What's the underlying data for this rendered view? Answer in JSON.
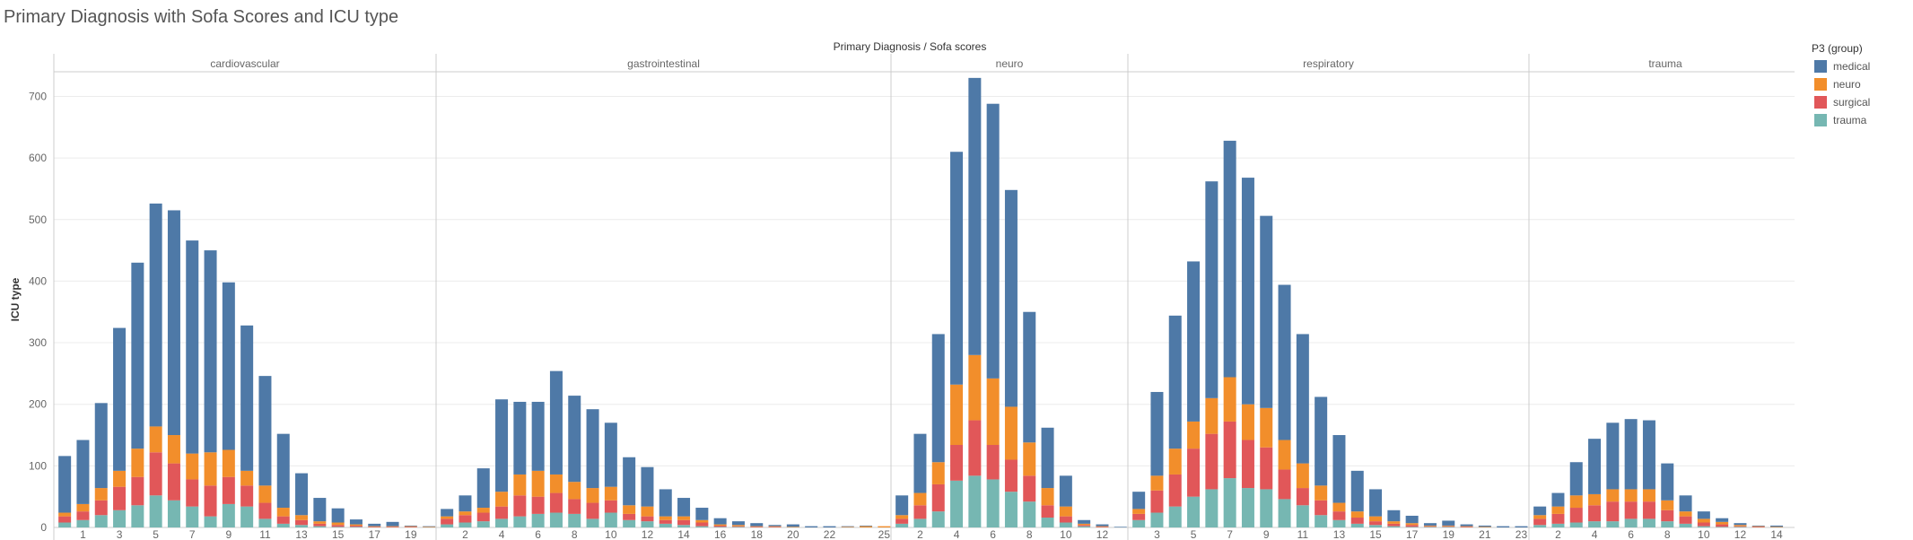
{
  "title": "Primary Diagnosis with Sofa Scores and ICU type",
  "chart_data": {
    "type": "bar",
    "stacked": true,
    "title": "Primary Diagnosis with Sofa Scores and ICU type",
    "column_header": "Primary Diagnosis  /  Sofa scores",
    "ylabel": "ICU type",
    "ylim": [
      0,
      740
    ],
    "yticks": [
      0,
      100,
      200,
      300,
      400,
      500,
      600,
      700
    ],
    "grid": true,
    "legend_title": "P3 (group)",
    "legend_position": "top-right",
    "series": [
      {
        "name": "medical",
        "color": "#4e79a7"
      },
      {
        "name": "neuro",
        "color": "#f28e2b"
      },
      {
        "name": "surgical",
        "color": "#e15759"
      },
      {
        "name": "trauma",
        "color": "#76b7b2"
      }
    ],
    "panels": [
      {
        "name": "cardiovascular",
        "x": [
          0,
          1,
          2,
          3,
          4,
          5,
          6,
          7,
          8,
          9,
          10,
          11,
          12,
          13,
          14,
          15,
          16,
          17,
          18,
          19,
          20
        ],
        "xtick_labels": [
          "1",
          "3",
          "5",
          "7",
          "9",
          "11",
          "13",
          "15",
          "17",
          "19"
        ],
        "stacks": [
          {
            "trauma": 8,
            "surgical": 10,
            "neuro": 6,
            "medical": 92
          },
          {
            "trauma": 12,
            "surgical": 14,
            "neuro": 12,
            "medical": 104
          },
          {
            "trauma": 20,
            "surgical": 24,
            "neuro": 20,
            "medical": 138
          },
          {
            "trauma": 28,
            "surgical": 38,
            "neuro": 26,
            "medical": 232
          },
          {
            "trauma": 36,
            "surgical": 46,
            "neuro": 46,
            "medical": 302
          },
          {
            "trauma": 52,
            "surgical": 70,
            "neuro": 42,
            "medical": 362
          },
          {
            "trauma": 44,
            "surgical": 60,
            "neuro": 46,
            "medical": 365
          },
          {
            "trauma": 34,
            "surgical": 44,
            "neuro": 42,
            "medical": 346
          },
          {
            "trauma": 18,
            "surgical": 50,
            "neuro": 54,
            "medical": 328
          },
          {
            "trauma": 38,
            "surgical": 44,
            "neuro": 44,
            "medical": 272
          },
          {
            "trauma": 34,
            "surgical": 34,
            "neuro": 24,
            "medical": 236
          },
          {
            "trauma": 14,
            "surgical": 26,
            "neuro": 28,
            "medical": 178
          },
          {
            "trauma": 6,
            "surgical": 12,
            "neuro": 14,
            "medical": 120
          },
          {
            "trauma": 4,
            "surgical": 8,
            "neuro": 8,
            "medical": 68
          },
          {
            "trauma": 2,
            "surgical": 4,
            "neuro": 4,
            "medical": 38
          },
          {
            "trauma": 1,
            "surgical": 3,
            "neuro": 4,
            "medical": 23
          },
          {
            "trauma": 1,
            "surgical": 2,
            "neuro": 2,
            "medical": 8
          },
          {
            "trauma": 0,
            "surgical": 1,
            "neuro": 1,
            "medical": 4
          },
          {
            "trauma": 0,
            "surgical": 1,
            "neuro": 1,
            "medical": 7
          },
          {
            "trauma": 0,
            "surgical": 1,
            "neuro": 1,
            "medical": 1
          },
          {
            "trauma": 0,
            "surgical": 0,
            "neuro": 1,
            "medical": 1
          }
        ]
      },
      {
        "name": "gastrointestinal",
        "x": [
          1,
          2,
          3,
          4,
          5,
          6,
          7,
          8,
          9,
          10,
          11,
          12,
          13,
          14,
          15,
          16,
          17,
          18,
          19,
          20,
          21,
          22,
          23,
          24,
          25
        ],
        "xtick_labels": [
          "2",
          "4",
          "6",
          "8",
          "10",
          "12",
          "14",
          "16",
          "18",
          "20",
          "22",
          "25"
        ],
        "stacks": [
          {
            "trauma": 5,
            "surgical": 9,
            "neuro": 4,
            "medical": 12
          },
          {
            "trauma": 8,
            "surgical": 12,
            "neuro": 6,
            "medical": 26
          },
          {
            "trauma": 10,
            "surgical": 14,
            "neuro": 8,
            "medical": 64
          },
          {
            "trauma": 14,
            "surgical": 20,
            "neuro": 24,
            "medical": 150
          },
          {
            "trauma": 18,
            "surgical": 34,
            "neuro": 34,
            "medical": 118
          },
          {
            "trauma": 22,
            "surgical": 28,
            "neuro": 42,
            "medical": 112
          },
          {
            "trauma": 24,
            "surgical": 32,
            "neuro": 30,
            "medical": 168
          },
          {
            "trauma": 22,
            "surgical": 24,
            "neuro": 28,
            "medical": 140
          },
          {
            "trauma": 14,
            "surgical": 26,
            "neuro": 24,
            "medical": 128
          },
          {
            "trauma": 24,
            "surgical": 20,
            "neuro": 22,
            "medical": 104
          },
          {
            "trauma": 12,
            "surgical": 10,
            "neuro": 14,
            "medical": 78
          },
          {
            "trauma": 10,
            "surgical": 8,
            "neuro": 16,
            "medical": 64
          },
          {
            "trauma": 6,
            "surgical": 6,
            "neuro": 6,
            "medical": 44
          },
          {
            "trauma": 4,
            "surgical": 8,
            "neuro": 6,
            "medical": 30
          },
          {
            "trauma": 2,
            "surgical": 6,
            "neuro": 4,
            "medical": 20
          },
          {
            "trauma": 1,
            "surgical": 2,
            "neuro": 2,
            "medical": 10
          },
          {
            "trauma": 1,
            "surgical": 1,
            "neuro": 2,
            "medical": 6
          },
          {
            "trauma": 0,
            "surgical": 1,
            "neuro": 1,
            "medical": 5
          },
          {
            "trauma": 0,
            "surgical": 1,
            "neuro": 1,
            "medical": 2
          },
          {
            "trauma": 0,
            "surgical": 0,
            "neuro": 1,
            "medical": 4
          },
          {
            "trauma": 0,
            "surgical": 0,
            "neuro": 0,
            "medical": 2
          },
          {
            "trauma": 0,
            "surgical": 0,
            "neuro": 0,
            "medical": 2
          },
          {
            "trauma": 0,
            "surgical": 0,
            "neuro": 1,
            "medical": 1
          },
          {
            "trauma": 0,
            "surgical": 0,
            "neuro": 2,
            "medical": 1
          },
          {
            "trauma": 0,
            "surgical": 0,
            "neuro": 2,
            "medical": 0
          }
        ]
      },
      {
        "name": "neuro",
        "x": [
          1,
          2,
          3,
          4,
          5,
          6,
          7,
          8,
          9,
          10,
          11,
          12,
          13
        ],
        "xtick_labels": [
          "2",
          "4",
          "6",
          "8",
          "10",
          "12"
        ],
        "stacks": [
          {
            "trauma": 6,
            "surgical": 8,
            "neuro": 6,
            "medical": 32
          },
          {
            "trauma": 14,
            "surgical": 22,
            "neuro": 20,
            "medical": 96
          },
          {
            "trauma": 26,
            "surgical": 44,
            "neuro": 36,
            "medical": 208
          },
          {
            "trauma": 76,
            "surgical": 58,
            "neuro": 98,
            "medical": 378
          },
          {
            "trauma": 84,
            "surgical": 90,
            "neuro": 106,
            "medical": 450
          },
          {
            "trauma": 78,
            "surgical": 56,
            "neuro": 108,
            "medical": 446
          },
          {
            "trauma": 58,
            "surgical": 52,
            "neuro": 86,
            "medical": 352
          },
          {
            "trauma": 42,
            "surgical": 42,
            "neuro": 54,
            "medical": 212
          },
          {
            "trauma": 16,
            "surgical": 20,
            "neuro": 28,
            "medical": 98
          },
          {
            "trauma": 8,
            "surgical": 10,
            "neuro": 16,
            "medical": 50
          },
          {
            "trauma": 2,
            "surgical": 2,
            "neuro": 2,
            "medical": 6
          },
          {
            "trauma": 0,
            "surgical": 1,
            "neuro": 1,
            "medical": 3
          },
          {
            "trauma": 0,
            "surgical": 0,
            "neuro": 0,
            "medical": 1
          }
        ]
      },
      {
        "name": "respiratory",
        "x": [
          2,
          3,
          4,
          5,
          6,
          7,
          8,
          9,
          10,
          11,
          12,
          13,
          14,
          15,
          16,
          17,
          18,
          19,
          20,
          21,
          22,
          23
        ],
        "xtick_labels": [
          "3",
          "5",
          "7",
          "9",
          "11",
          "13",
          "15",
          "17",
          "19",
          "21",
          "23"
        ],
        "stacks": [
          {
            "trauma": 12,
            "surgical": 10,
            "neuro": 8,
            "medical": 28
          },
          {
            "trauma": 24,
            "surgical": 36,
            "neuro": 24,
            "medical": 136
          },
          {
            "trauma": 34,
            "surgical": 52,
            "neuro": 42,
            "medical": 216
          },
          {
            "trauma": 50,
            "surgical": 78,
            "neuro": 44,
            "medical": 260
          },
          {
            "trauma": 62,
            "surgical": 90,
            "neuro": 58,
            "medical": 352
          },
          {
            "trauma": 80,
            "surgical": 92,
            "neuro": 72,
            "medical": 384
          },
          {
            "trauma": 64,
            "surgical": 78,
            "neuro": 58,
            "medical": 368
          },
          {
            "trauma": 62,
            "surgical": 68,
            "neuro": 64,
            "medical": 312
          },
          {
            "trauma": 46,
            "surgical": 48,
            "neuro": 48,
            "medical": 252
          },
          {
            "trauma": 36,
            "surgical": 28,
            "neuro": 40,
            "medical": 210
          },
          {
            "trauma": 20,
            "surgical": 24,
            "neuro": 24,
            "medical": 144
          },
          {
            "trauma": 12,
            "surgical": 14,
            "neuro": 14,
            "medical": 110
          },
          {
            "trauma": 6,
            "surgical": 10,
            "neuro": 10,
            "medical": 66
          },
          {
            "trauma": 4,
            "surgical": 6,
            "neuro": 8,
            "medical": 44
          },
          {
            "trauma": 2,
            "surgical": 4,
            "neuro": 4,
            "medical": 18
          },
          {
            "trauma": 1,
            "surgical": 3,
            "neuro": 3,
            "medical": 12
          },
          {
            "trauma": 1,
            "surgical": 1,
            "neuro": 1,
            "medical": 4
          },
          {
            "trauma": 1,
            "surgical": 1,
            "neuro": 1,
            "medical": 8
          },
          {
            "trauma": 0,
            "surgical": 1,
            "neuro": 1,
            "medical": 3
          },
          {
            "trauma": 0,
            "surgical": 0,
            "neuro": 1,
            "medical": 2
          },
          {
            "trauma": 0,
            "surgical": 0,
            "neuro": 0,
            "medical": 2
          },
          {
            "trauma": 0,
            "surgical": 0,
            "neuro": 0,
            "medical": 2
          }
        ]
      },
      {
        "name": "trauma",
        "x": [
          1,
          2,
          3,
          4,
          5,
          6,
          7,
          8,
          9,
          10,
          11,
          12,
          13,
          14
        ],
        "xtick_labels": [
          "2",
          "4",
          "6",
          "8",
          "10",
          "12",
          "14"
        ],
        "stacks": [
          {
            "trauma": 4,
            "surgical": 10,
            "neuro": 6,
            "medical": 14
          },
          {
            "trauma": 6,
            "surgical": 16,
            "neuro": 12,
            "medical": 22
          },
          {
            "trauma": 8,
            "surgical": 24,
            "neuro": 20,
            "medical": 54
          },
          {
            "trauma": 10,
            "surgical": 26,
            "neuro": 18,
            "medical": 90
          },
          {
            "trauma": 10,
            "surgical": 32,
            "neuro": 20,
            "medical": 108
          },
          {
            "trauma": 14,
            "surgical": 28,
            "neuro": 20,
            "medical": 114
          },
          {
            "trauma": 14,
            "surgical": 28,
            "neuro": 20,
            "medical": 112
          },
          {
            "trauma": 10,
            "surgical": 18,
            "neuro": 16,
            "medical": 60
          },
          {
            "trauma": 6,
            "surgical": 12,
            "neuro": 8,
            "medical": 26
          },
          {
            "trauma": 2,
            "surgical": 6,
            "neuro": 6,
            "medical": 12
          },
          {
            "trauma": 1,
            "surgical": 4,
            "neuro": 4,
            "medical": 6
          },
          {
            "trauma": 1,
            "surgical": 1,
            "neuro": 2,
            "medical": 3
          },
          {
            "trauma": 0,
            "surgical": 1,
            "neuro": 1,
            "medical": 1
          },
          {
            "trauma": 0,
            "surgical": 0,
            "neuro": 1,
            "medical": 2
          }
        ]
      }
    ]
  }
}
